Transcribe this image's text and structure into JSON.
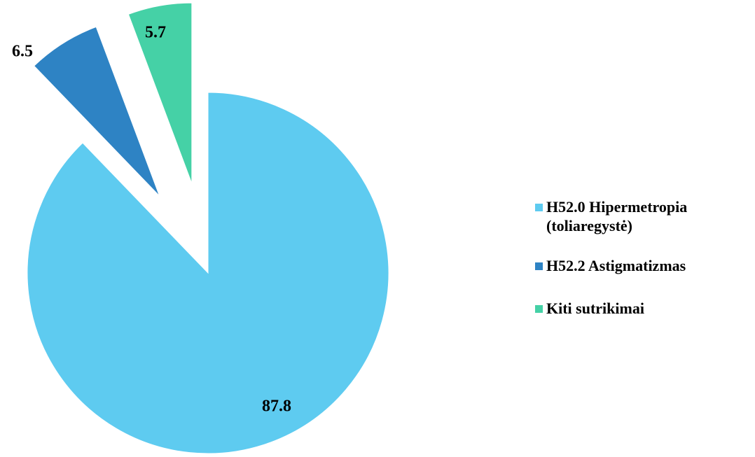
{
  "chart_data": {
    "type": "pie",
    "categories": [
      "H52.0 Hipermetropia (toliaregystė)",
      "H52.2 Astigmatizmas",
      "Kiti sutrikimai"
    ],
    "values": [
      87.8,
      6.5,
      5.7
    ],
    "colors": [
      "#5ECBF0",
      "#2E83C4",
      "#45D1A6"
    ],
    "legend": "right"
  }
}
